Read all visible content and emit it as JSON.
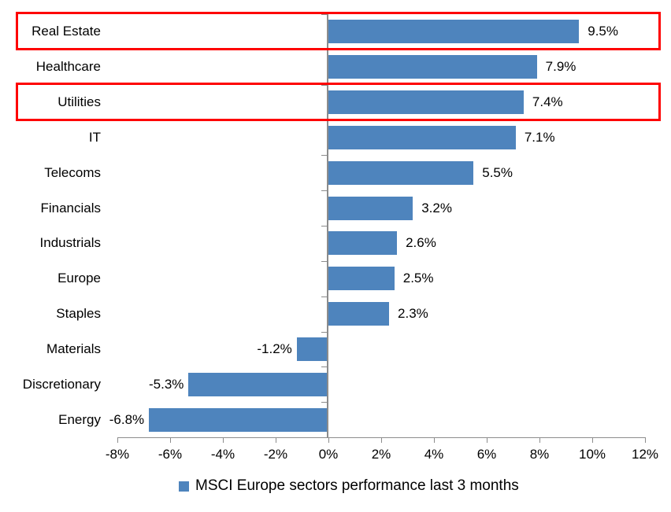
{
  "chart_data": {
    "type": "bar",
    "orientation": "horizontal",
    "title": "",
    "categories": [
      "Real Estate",
      "Healthcare",
      "Utilities",
      "IT",
      "Telecoms",
      "Financials",
      "Industrials",
      "Europe",
      "Staples",
      "Materials",
      "Discretionary",
      "Energy"
    ],
    "values": [
      9.5,
      7.9,
      7.4,
      7.1,
      5.5,
      3.2,
      2.6,
      2.5,
      2.3,
      -1.2,
      -5.3,
      -6.8
    ],
    "value_labels": [
      "9.5%",
      "7.9%",
      "7.4%",
      "7.1%",
      "5.5%",
      "3.2%",
      "2.6%",
      "2.5%",
      "2.3%",
      "-1.2%",
      "-5.3%",
      "-6.8%"
    ],
    "x_ticks": [
      "-8%",
      "-6%",
      "-4%",
      "-2%",
      "0%",
      "2%",
      "4%",
      "6%",
      "8%",
      "10%",
      "12%"
    ],
    "x_range": [
      -8,
      12
    ],
    "grid": false,
    "legend": "MSCI Europe sectors performance last 3 months",
    "legend_position": "bottom-center",
    "bar_color": "#4e84bd",
    "axis_color": "#8c8c8c",
    "highlight_color": "#fe0000",
    "highlighted_categories": [
      "Real Estate",
      "Utilities"
    ]
  }
}
